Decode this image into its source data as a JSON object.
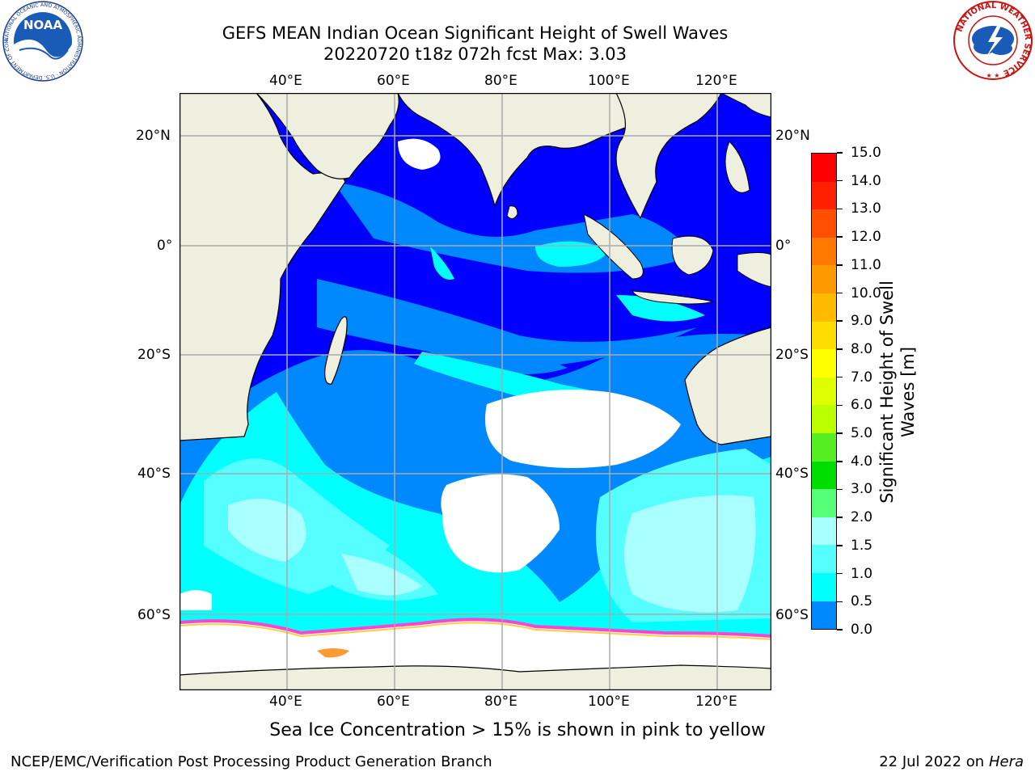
{
  "title": {
    "line1": "GEFS MEAN Indian Ocean Significant Height of Swell Waves",
    "line2": "20220720 t18z 072h fcst   Max: 3.03"
  },
  "map": {
    "lon_ticks_top": [
      "40°E",
      "60°E",
      "80°E",
      "100°E",
      "120°E"
    ],
    "lon_ticks_bottom": [
      "40°E",
      "60°E",
      "80°E",
      "100°E",
      "120°E"
    ],
    "lat_ticks_left": [
      "20°N",
      "0°",
      "20°S",
      "40°S",
      "60°S"
    ],
    "lat_ticks_right": [
      "20°N",
      "0°",
      "20°S",
      "40°S",
      "60°S"
    ],
    "colors": {
      "land": "#efefdf",
      "ocean_base": "#0000ff",
      "grid": "#aaaaaa",
      "coast": "#000000",
      "ice_pink": "#ff44cc",
      "ice_yellow": "#ffcc44"
    }
  },
  "colorbar": {
    "title_line1": "Significant Height of Swell",
    "title_line2": "Waves [m]",
    "ticks": [
      "15.0",
      "14.0",
      "13.0",
      "12.0",
      "11.0",
      "10.0",
      "9.0",
      "8.0",
      "7.0",
      "6.0",
      "5.0",
      "4.0",
      "3.0",
      "2.0",
      "1.5",
      "1.0",
      "0.5",
      "0.0"
    ],
    "colors": [
      "#ff0000",
      "#ff2000",
      "#ff5000",
      "#ff7800",
      "#ff9900",
      "#ffbb00",
      "#ffdd00",
      "#ffff00",
      "#ddff00",
      "#bbff00",
      "#55ee22",
      "#00dd00",
      "#55ff77",
      "#aaffff",
      "#55ffff",
      "#00ffff",
      "#0088ff",
      "#0000ff"
    ]
  },
  "caption": "Sea Ice Concentration > 15% is shown in pink to yellow",
  "footer": {
    "left": "NCEP/EMC/Verification Post Processing Product Generation Branch",
    "date": "22 Jul 2022 on ",
    "machine": "Hera"
  },
  "logos": {
    "noaa_text": "NOAA",
    "noaa_ring": "NATIONAL OCEANIC AND ATMOSPHERIC ADMINISTRATION · U.S. DEPARTMENT OF COMMERCE",
    "nws_ring": "NATIONAL WEATHER SERVICE"
  }
}
